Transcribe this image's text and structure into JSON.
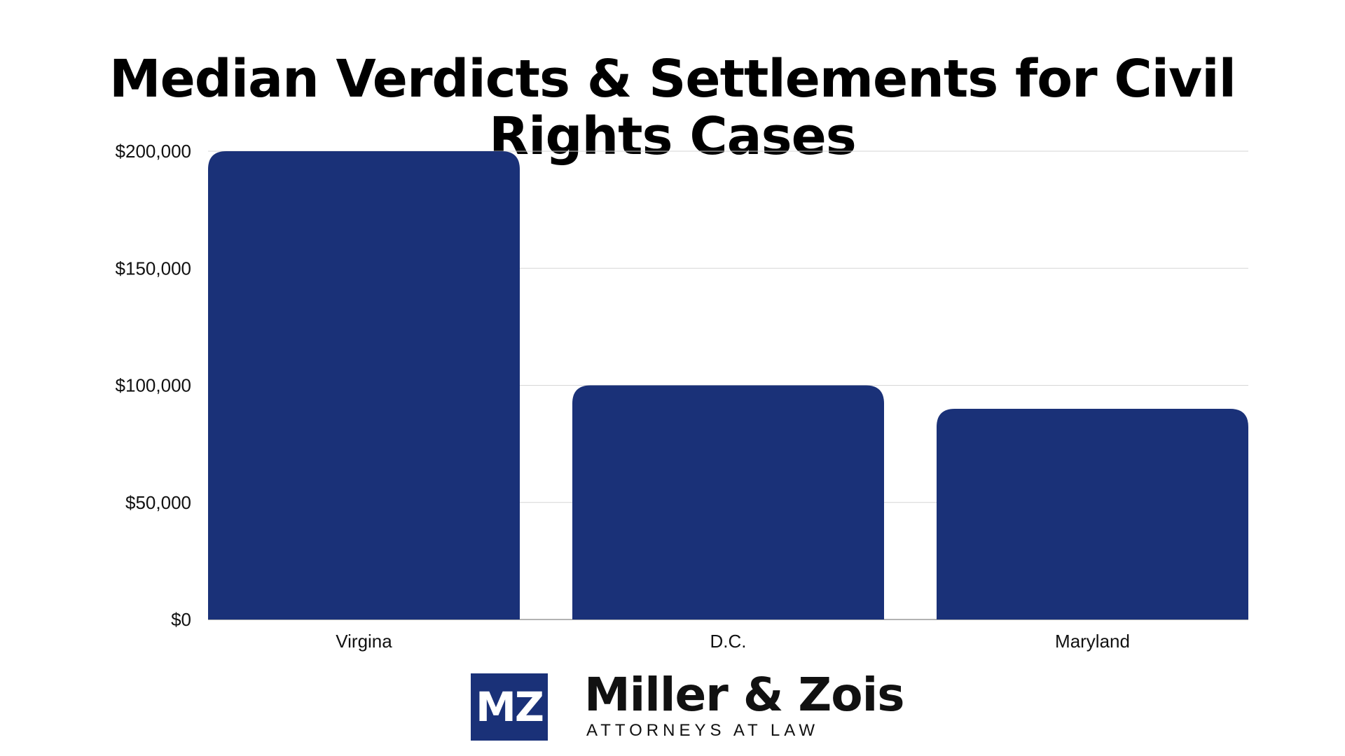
{
  "chart_data": {
    "type": "bar",
    "title_lines": [
      "Median Verdicts & Settlements for Civil",
      "Rights Cases"
    ],
    "categories": [
      "Virgina",
      "D.C.",
      "Maryland"
    ],
    "values": [
      200000,
      100000,
      90000
    ],
    "ylim": [
      0,
      200000
    ],
    "yticks": [
      0,
      50000,
      100000,
      150000,
      200000
    ],
    "ytick_labels": [
      "$0",
      "$50,000",
      "$100,000",
      "$150,000",
      "$200,000"
    ],
    "bar_color": "#1a3178",
    "grid": true,
    "xlabel": "",
    "ylabel": ""
  },
  "logo": {
    "mark": "MZ",
    "name": "Miller & Zois",
    "tagline": "ATTORNEYS AT LAW",
    "color": "#1a3178"
  }
}
